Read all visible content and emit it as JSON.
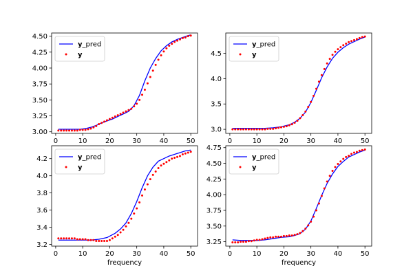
{
  "colors": {
    "pred": "#0000ff",
    "obs": "#ff0000"
  },
  "chart_data": [
    {
      "type": "line",
      "xlabel": "",
      "ylabel": "",
      "xlim": [
        -1.5,
        52.5
      ],
      "ylim": [
        2.975,
        4.55
      ],
      "xticks": [
        "0",
        "10",
        "20",
        "30",
        "40",
        "50"
      ],
      "yticks": [
        "3.00",
        "3.25",
        "3.50",
        "3.75",
        "4.00",
        "4.25",
        "4.50"
      ],
      "legend_position": "top-left",
      "series": [
        {
          "name": "y_pred",
          "style": "line",
          "x": [
            1,
            3,
            5,
            7,
            9,
            11,
            13,
            15,
            17,
            19,
            21,
            23,
            25,
            27,
            29,
            31,
            33,
            35,
            37,
            39,
            41,
            43,
            45,
            47,
            49,
            50
          ],
          "y": [
            3.04,
            3.04,
            3.04,
            3.04,
            3.04,
            3.05,
            3.07,
            3.1,
            3.14,
            3.17,
            3.2,
            3.24,
            3.28,
            3.32,
            3.41,
            3.57,
            3.8,
            4.0,
            4.15,
            4.27,
            4.35,
            4.41,
            4.45,
            4.48,
            4.51,
            4.52
          ]
        },
        {
          "name": "y",
          "style": "dots",
          "x": [
            1,
            2,
            3,
            4,
            5,
            6,
            7,
            8,
            9,
            10,
            11,
            12,
            13,
            14,
            15,
            16,
            17,
            18,
            19,
            20,
            21,
            22,
            23,
            24,
            25,
            26,
            27,
            28,
            29,
            30,
            31,
            32,
            33,
            34,
            35,
            36,
            37,
            38,
            39,
            40,
            41,
            42,
            43,
            44,
            45,
            46,
            47,
            48,
            49,
            50
          ],
          "y": [
            3.02,
            3.02,
            3.02,
            3.02,
            3.02,
            3.02,
            3.02,
            3.02,
            3.03,
            3.03,
            3.03,
            3.04,
            3.05,
            3.07,
            3.09,
            3.12,
            3.14,
            3.16,
            3.18,
            3.2,
            3.22,
            3.24,
            3.26,
            3.28,
            3.3,
            3.32,
            3.34,
            3.36,
            3.4,
            3.44,
            3.5,
            3.58,
            3.66,
            3.76,
            3.86,
            3.96,
            4.05,
            4.13,
            4.2,
            4.26,
            4.31,
            4.35,
            4.38,
            4.41,
            4.43,
            4.45,
            4.47,
            4.48,
            4.5,
            4.51
          ]
        }
      ]
    },
    {
      "type": "line",
      "xlabel": "",
      "ylabel": "",
      "xlim": [
        -1.5,
        52.5
      ],
      "ylim": [
        2.92,
        4.9
      ],
      "xticks": [
        "0",
        "10",
        "20",
        "30",
        "40",
        "50"
      ],
      "yticks": [
        "3.0",
        "3.5",
        "4.0",
        "4.5"
      ],
      "legend_position": "top-left",
      "series": [
        {
          "name": "y_pred",
          "style": "line",
          "x": [
            1,
            4,
            7,
            10,
            13,
            16,
            19,
            22,
            24,
            26,
            28,
            30,
            32,
            34,
            36,
            38,
            40,
            42,
            44,
            46,
            48,
            50
          ],
          "y": [
            3.02,
            3.02,
            3.02,
            3.02,
            3.02,
            3.03,
            3.05,
            3.09,
            3.14,
            3.22,
            3.34,
            3.53,
            3.77,
            4.02,
            4.23,
            4.4,
            4.52,
            4.61,
            4.68,
            4.73,
            4.78,
            4.82
          ]
        },
        {
          "name": "y",
          "style": "dots",
          "x": [
            1,
            2,
            3,
            4,
            5,
            6,
            7,
            8,
            9,
            10,
            11,
            12,
            13,
            14,
            15,
            16,
            17,
            18,
            19,
            20,
            21,
            22,
            23,
            24,
            25,
            26,
            27,
            28,
            29,
            30,
            31,
            32,
            33,
            34,
            35,
            36,
            37,
            38,
            39,
            40,
            41,
            42,
            43,
            44,
            45,
            46,
            47,
            48,
            49,
            50
          ],
          "y": [
            3.0,
            3.0,
            3.0,
            3.0,
            3.0,
            3.0,
            3.0,
            3.0,
            3.0,
            3.0,
            3.0,
            3.0,
            3.0,
            3.01,
            3.01,
            3.01,
            3.02,
            3.03,
            3.04,
            3.05,
            3.06,
            3.08,
            3.1,
            3.13,
            3.17,
            3.22,
            3.28,
            3.35,
            3.44,
            3.54,
            3.66,
            3.8,
            3.94,
            4.07,
            4.19,
            4.3,
            4.39,
            4.47,
            4.53,
            4.58,
            4.62,
            4.66,
            4.69,
            4.72,
            4.74,
            4.76,
            4.78,
            4.8,
            4.82,
            4.83
          ]
        }
      ]
    },
    {
      "type": "line",
      "xlabel": "frequency",
      "ylabel": "",
      "xlim": [
        -1.5,
        52.5
      ],
      "ylim": [
        3.18,
        4.35
      ],
      "xticks": [
        "0",
        "10",
        "20",
        "30",
        "40",
        "50"
      ],
      "yticks": [
        "3.2",
        "3.4",
        "3.6",
        "3.8",
        "4.0",
        "4.2"
      ],
      "legend_position": "top-left",
      "series": [
        {
          "name": "y_pred",
          "style": "line",
          "x": [
            1,
            4,
            7,
            10,
            13,
            16,
            19,
            22,
            24,
            26,
            28,
            30,
            32,
            34,
            36,
            38,
            40,
            42,
            44,
            46,
            48,
            50
          ],
          "y": [
            3.25,
            3.25,
            3.25,
            3.25,
            3.25,
            3.26,
            3.28,
            3.33,
            3.38,
            3.45,
            3.56,
            3.7,
            3.86,
            4.0,
            4.1,
            4.17,
            4.2,
            4.23,
            4.25,
            4.27,
            4.29,
            4.3
          ]
        },
        {
          "name": "y",
          "style": "dots",
          "x": [
            1,
            2,
            3,
            4,
            5,
            6,
            7,
            8,
            9,
            10,
            11,
            12,
            13,
            14,
            15,
            16,
            17,
            18,
            19,
            20,
            21,
            22,
            23,
            24,
            25,
            26,
            27,
            28,
            29,
            30,
            31,
            32,
            33,
            34,
            35,
            36,
            37,
            38,
            39,
            40,
            41,
            42,
            43,
            44,
            45,
            46,
            47,
            48,
            49,
            50
          ],
          "y": [
            3.27,
            3.27,
            3.27,
            3.27,
            3.27,
            3.27,
            3.27,
            3.26,
            3.26,
            3.26,
            3.26,
            3.25,
            3.25,
            3.25,
            3.24,
            3.24,
            3.24,
            3.24,
            3.24,
            3.25,
            3.27,
            3.29,
            3.31,
            3.34,
            3.37,
            3.41,
            3.45,
            3.5,
            3.56,
            3.62,
            3.69,
            3.77,
            3.84,
            3.9,
            3.96,
            4.01,
            4.05,
            4.09,
            4.12,
            4.14,
            4.16,
            4.18,
            4.2,
            4.21,
            4.22,
            4.23,
            4.25,
            4.26,
            4.27,
            4.28
          ]
        }
      ]
    },
    {
      "type": "line",
      "xlabel": "frequency",
      "ylabel": "",
      "xlim": [
        -1.5,
        52.5
      ],
      "ylim": [
        3.18,
        4.78
      ],
      "xticks": [
        "0",
        "10",
        "20",
        "30",
        "40",
        "50"
      ],
      "yticks": [
        "3.25",
        "3.50",
        "3.75",
        "4.00",
        "4.25",
        "4.50",
        "4.75"
      ],
      "legend_position": "top-left",
      "series": [
        {
          "name": "y_pred",
          "style": "line",
          "x": [
            1,
            4,
            7,
            10,
            13,
            16,
            19,
            22,
            24,
            26,
            28,
            30,
            32,
            34,
            36,
            38,
            40,
            42,
            44,
            46,
            48,
            50
          ],
          "y": [
            3.28,
            3.27,
            3.27,
            3.27,
            3.28,
            3.3,
            3.32,
            3.33,
            3.35,
            3.38,
            3.45,
            3.58,
            3.78,
            3.99,
            4.18,
            4.33,
            4.45,
            4.53,
            4.6,
            4.64,
            4.68,
            4.71
          ]
        },
        {
          "name": "y",
          "style": "dots",
          "x": [
            1,
            2,
            3,
            4,
            5,
            6,
            7,
            8,
            9,
            10,
            11,
            12,
            13,
            14,
            15,
            16,
            17,
            18,
            19,
            20,
            21,
            22,
            23,
            24,
            25,
            26,
            27,
            28,
            29,
            30,
            31,
            32,
            33,
            34,
            35,
            36,
            37,
            38,
            39,
            40,
            41,
            42,
            43,
            44,
            45,
            46,
            47,
            48,
            49,
            50
          ],
          "y": [
            3.24,
            3.24,
            3.24,
            3.25,
            3.25,
            3.25,
            3.26,
            3.26,
            3.27,
            3.28,
            3.28,
            3.29,
            3.3,
            3.31,
            3.32,
            3.32,
            3.33,
            3.33,
            3.33,
            3.34,
            3.34,
            3.35,
            3.35,
            3.36,
            3.37,
            3.39,
            3.42,
            3.46,
            3.51,
            3.57,
            3.65,
            3.75,
            3.86,
            3.98,
            4.1,
            4.21,
            4.3,
            4.38,
            4.44,
            4.49,
            4.53,
            4.57,
            4.6,
            4.62,
            4.65,
            4.67,
            4.68,
            4.7,
            4.71,
            4.72
          ]
        }
      ]
    }
  ]
}
